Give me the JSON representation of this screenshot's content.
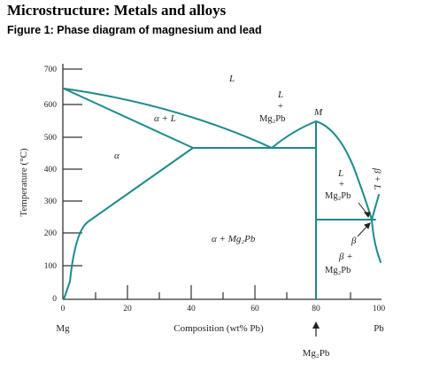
{
  "header": {
    "title": "Microstructure: Metals and alloys",
    "caption": "Figure 1: Phase diagram of magnesium and lead"
  },
  "axes": {
    "y_label": "Temperature (°C)",
    "x_label": "Composition (wt% Pb)",
    "x_left_element": "Mg",
    "x_right_element": "Pb",
    "y_ticks": [
      "0",
      "100",
      "200",
      "300",
      "400",
      "500",
      "600",
      "700"
    ],
    "x_ticks": [
      "0",
      "20",
      "40",
      "60",
      "80",
      "100"
    ],
    "compound_arrow_label": "Mg₂Pb"
  },
  "regions": {
    "liquid": "L",
    "alpha": "α",
    "alpha_plus_liquid": "α + L",
    "alpha_plus_mg2pb": "α + Mg₂Pb",
    "liquid_plus_mg2pb_left_top": "L",
    "liquid_plus_mg2pb_left_plus": "+",
    "liquid_plus_mg2pb_left_bottom": "Mg₂Pb",
    "max_point": "M",
    "liquid_plus_mg2pb_right_top": "L",
    "liquid_plus_mg2pb_right_plus": "+",
    "liquid_plus_mg2pb_right_bottom": "Mg₂Pb",
    "beta": "β",
    "beta_plus_mg2pb_top": "β +",
    "beta_plus_mg2pb_bottom": "Mg₂Pb",
    "beta_plus_liquid_vertical": "β + L"
  },
  "colors": {
    "lines": "#1d8a8a",
    "axis": "#333333"
  }
}
